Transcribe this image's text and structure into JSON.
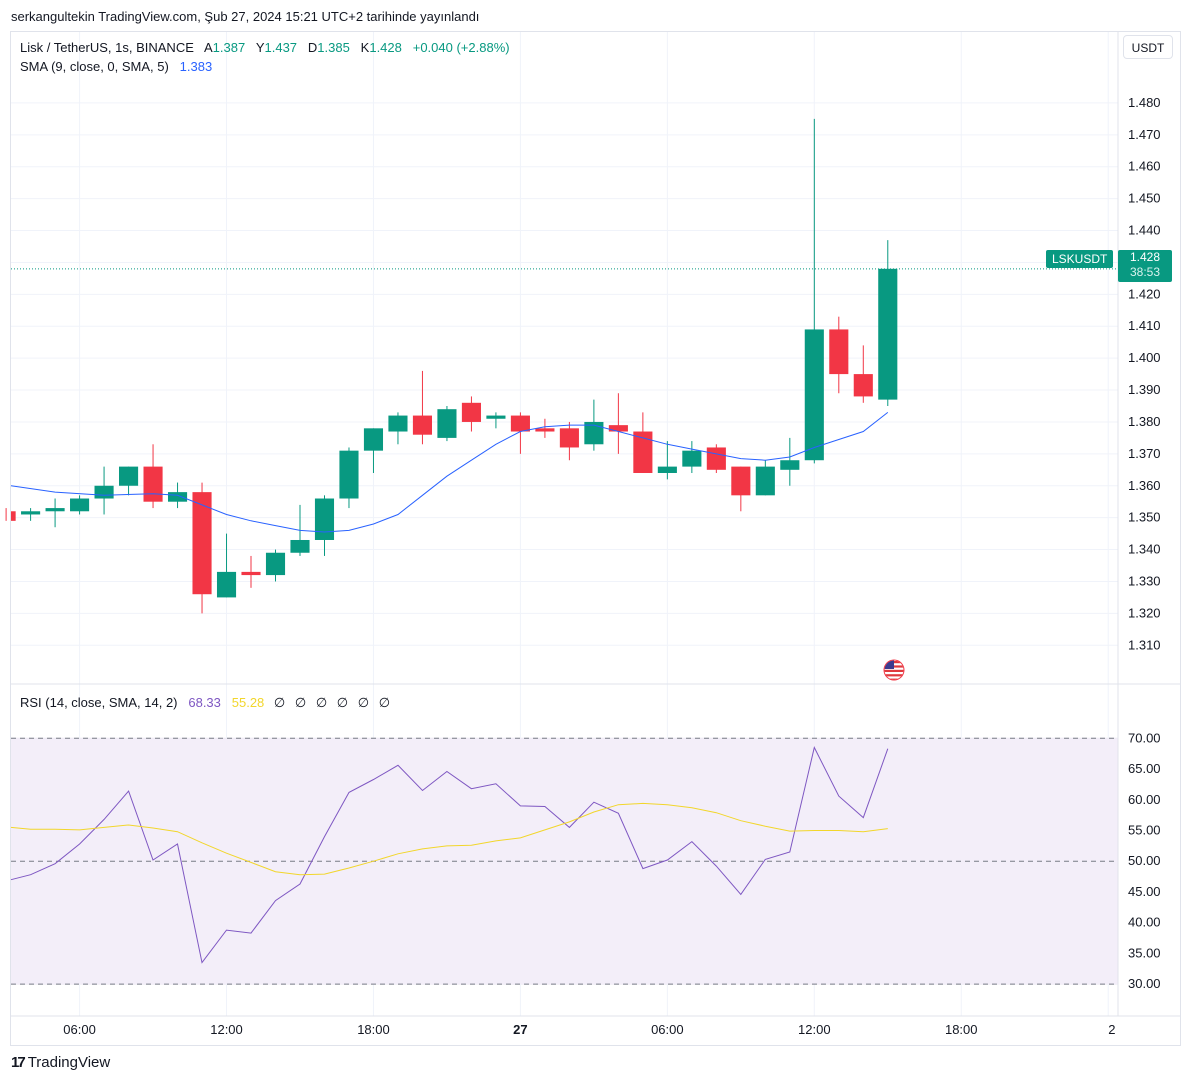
{
  "header": {
    "publish_line": "serkangultekin TradingView.com, Şub 27, 2024 15:21 UTC+2 tarihinde yayınlandı"
  },
  "legend": {
    "symbol": "Lisk / TetherUS, 1s, BINANCE",
    "o_label": "A",
    "o_value": "1.387",
    "h_label": "Y",
    "h_value": "1.437",
    "l_label": "D",
    "l_value": "1.385",
    "c_label": "K",
    "c_value": "1.428",
    "change": "+0.040 (+2.88%)",
    "sma_label": "SMA (9, close, 0, SMA, 5)",
    "sma_value": "1.383",
    "rsi_label": "RSI (14, close, SMA, 14, 2)",
    "rsi_value": "68.33",
    "rsi_ma_value": "55.28",
    "null_values": [
      "∅",
      "∅",
      "∅",
      "∅",
      "∅",
      "∅"
    ]
  },
  "currency_button": "USDT",
  "last_price": {
    "symbol": "LSKUSDT",
    "price": "1.428",
    "countdown": "38:53"
  },
  "branding": {
    "logo_mark": "17",
    "name": "TradingView"
  },
  "colors": {
    "up": "#089981",
    "down": "#f23645",
    "sma": "#2962ff",
    "rsi": "#7e57c2",
    "rsi_ma": "#f2d62b",
    "rsi_band": "#f3eef9"
  },
  "chart_data": [
    {
      "type": "candlestick",
      "title": "Lisk / TetherUS, 1s, BINANCE",
      "y_ticks": [
        "1.310",
        "1.320",
        "1.330",
        "1.340",
        "1.350",
        "1.360",
        "1.370",
        "1.380",
        "1.390",
        "1.400",
        "1.410",
        "1.420",
        "1.430",
        "1.440",
        "1.450",
        "1.460",
        "1.470",
        "1.480"
      ],
      "ylim": [
        1.3035,
        1.4875
      ],
      "x_ticks": [
        "06:00",
        "12:00",
        "18:00",
        "27",
        "06:00",
        "12:00",
        "18:00",
        "2"
      ],
      "x_tick_hours": [
        6,
        12,
        18,
        24,
        30,
        36,
        42,
        48
      ],
      "xlim": [
        3.2,
        48.4
      ],
      "candles": [
        {
          "t": 3,
          "o": 1.352,
          "h": 1.353,
          "l": 1.349,
          "c": 1.349
        },
        {
          "t": 4,
          "o": 1.351,
          "h": 1.353,
          "l": 1.349,
          "c": 1.352
        },
        {
          "t": 5,
          "o": 1.352,
          "h": 1.356,
          "l": 1.347,
          "c": 1.353
        },
        {
          "t": 6,
          "o": 1.352,
          "h": 1.357,
          "l": 1.351,
          "c": 1.356
        },
        {
          "t": 7,
          "o": 1.356,
          "h": 1.366,
          "l": 1.351,
          "c": 1.36
        },
        {
          "t": 8,
          "o": 1.36,
          "h": 1.366,
          "l": 1.357,
          "c": 1.366
        },
        {
          "t": 9,
          "o": 1.366,
          "h": 1.373,
          "l": 1.353,
          "c": 1.355
        },
        {
          "t": 10,
          "o": 1.355,
          "h": 1.361,
          "l": 1.353,
          "c": 1.358
        },
        {
          "t": 11,
          "o": 1.358,
          "h": 1.361,
          "l": 1.32,
          "c": 1.326
        },
        {
          "t": 12,
          "o": 1.325,
          "h": 1.345,
          "l": 1.325,
          "c": 1.333
        },
        {
          "t": 13,
          "o": 1.333,
          "h": 1.338,
          "l": 1.328,
          "c": 1.332
        },
        {
          "t": 14,
          "o": 1.332,
          "h": 1.34,
          "l": 1.33,
          "c": 1.339
        },
        {
          "t": 15,
          "o": 1.339,
          "h": 1.354,
          "l": 1.338,
          "c": 1.343
        },
        {
          "t": 16,
          "o": 1.343,
          "h": 1.357,
          "l": 1.338,
          "c": 1.356
        },
        {
          "t": 17,
          "o": 1.356,
          "h": 1.372,
          "l": 1.353,
          "c": 1.371
        },
        {
          "t": 18,
          "o": 1.371,
          "h": 1.378,
          "l": 1.364,
          "c": 1.378
        },
        {
          "t": 19,
          "o": 1.377,
          "h": 1.383,
          "l": 1.373,
          "c": 1.382
        },
        {
          "t": 20,
          "o": 1.382,
          "h": 1.396,
          "l": 1.373,
          "c": 1.376
        },
        {
          "t": 21,
          "o": 1.375,
          "h": 1.385,
          "l": 1.374,
          "c": 1.384
        },
        {
          "t": 22,
          "o": 1.386,
          "h": 1.388,
          "l": 1.377,
          "c": 1.38
        },
        {
          "t": 23,
          "o": 1.381,
          "h": 1.383,
          "l": 1.378,
          "c": 1.382
        },
        {
          "t": 24,
          "o": 1.382,
          "h": 1.383,
          "l": 1.37,
          "c": 1.377
        },
        {
          "t": 25,
          "o": 1.378,
          "h": 1.381,
          "l": 1.375,
          "c": 1.377
        },
        {
          "t": 26,
          "o": 1.378,
          "h": 1.38,
          "l": 1.368,
          "c": 1.372
        },
        {
          "t": 27,
          "o": 1.373,
          "h": 1.387,
          "l": 1.371,
          "c": 1.38
        },
        {
          "t": 28,
          "o": 1.379,
          "h": 1.389,
          "l": 1.37,
          "c": 1.377
        },
        {
          "t": 29,
          "o": 1.377,
          "h": 1.383,
          "l": 1.364,
          "c": 1.364
        },
        {
          "t": 30,
          "o": 1.364,
          "h": 1.374,
          "l": 1.362,
          "c": 1.366
        },
        {
          "t": 31,
          "o": 1.366,
          "h": 1.374,
          "l": 1.364,
          "c": 1.371
        },
        {
          "t": 32,
          "o": 1.372,
          "h": 1.373,
          "l": 1.364,
          "c": 1.365
        },
        {
          "t": 33,
          "o": 1.366,
          "h": 1.366,
          "l": 1.352,
          "c": 1.357
        },
        {
          "t": 34,
          "o": 1.357,
          "h": 1.368,
          "l": 1.357,
          "c": 1.366
        },
        {
          "t": 35,
          "o": 1.365,
          "h": 1.375,
          "l": 1.36,
          "c": 1.368
        },
        {
          "t": 36,
          "o": 1.368,
          "h": 1.475,
          "l": 1.367,
          "c": 1.409
        },
        {
          "t": 37,
          "o": 1.409,
          "h": 1.413,
          "l": 1.389,
          "c": 1.395
        },
        {
          "t": 38,
          "o": 1.395,
          "h": 1.404,
          "l": 1.386,
          "c": 1.388
        },
        {
          "t": 39,
          "o": 1.387,
          "h": 1.437,
          "l": 1.385,
          "c": 1.428
        }
      ],
      "sma": {
        "name": "SMA (9, close, 0, SMA, 5)",
        "points": [
          [
            3,
            1.36
          ],
          [
            5,
            1.358
          ],
          [
            7,
            1.357
          ],
          [
            9,
            1.3575
          ],
          [
            10,
            1.357
          ],
          [
            11,
            1.354
          ],
          [
            12,
            1.351
          ],
          [
            13,
            1.349
          ],
          [
            14,
            1.3475
          ],
          [
            15,
            1.346
          ],
          [
            16,
            1.3455
          ],
          [
            17,
            1.346
          ],
          [
            18,
            1.348
          ],
          [
            19,
            1.351
          ],
          [
            20,
            1.357
          ],
          [
            21,
            1.363
          ],
          [
            22,
            1.368
          ],
          [
            23,
            1.373
          ],
          [
            24,
            1.377
          ],
          [
            25,
            1.3785
          ],
          [
            26,
            1.379
          ],
          [
            27,
            1.379
          ],
          [
            28,
            1.377
          ],
          [
            29,
            1.375
          ],
          [
            30,
            1.373
          ],
          [
            31,
            1.3715
          ],
          [
            32,
            1.37
          ],
          [
            33,
            1.3685
          ],
          [
            34,
            1.368
          ],
          [
            35,
            1.369
          ],
          [
            36,
            1.372
          ],
          [
            37,
            1.3745
          ],
          [
            38,
            1.377
          ],
          [
            39,
            1.383
          ]
        ]
      }
    },
    {
      "type": "line",
      "title": "RSI (14, close, SMA, 14, 2)",
      "y_ticks": [
        "30.00",
        "35.00",
        "40.00",
        "45.00",
        "50.00",
        "55.00",
        "60.00",
        "65.00",
        "70.00"
      ],
      "ylim": [
        29.7,
        73.3
      ],
      "bands": [
        30,
        50,
        70
      ],
      "series": [
        {
          "name": "RSI",
          "color": "#7e57c2",
          "points": [
            [
              3,
              47.0
            ],
            [
              4,
              47.8
            ],
            [
              5,
              49.6
            ],
            [
              6,
              52.8
            ],
            [
              7,
              56.8
            ],
            [
              8,
              61.4
            ],
            [
              9,
              50.2
            ],
            [
              10,
              52.8
            ],
            [
              11,
              33.5
            ],
            [
              12,
              38.8
            ],
            [
              13,
              38.3
            ],
            [
              14,
              43.6
            ],
            [
              15,
              46.3
            ],
            [
              16,
              54.0
            ],
            [
              17,
              61.2
            ],
            [
              18,
              63.3
            ],
            [
              19,
              65.6
            ],
            [
              20,
              61.5
            ],
            [
              21,
              64.6
            ],
            [
              22,
              61.8
            ],
            [
              23,
              62.6
            ],
            [
              24,
              59.0
            ],
            [
              25,
              58.9
            ],
            [
              26,
              55.5
            ],
            [
              27,
              59.6
            ],
            [
              28,
              57.8
            ],
            [
              29,
              48.8
            ],
            [
              30,
              50.2
            ],
            [
              31,
              53.2
            ],
            [
              32,
              49.2
            ],
            [
              33,
              44.6
            ],
            [
              34,
              50.3
            ],
            [
              35,
              51.5
            ],
            [
              36,
              68.5
            ],
            [
              37,
              60.6
            ],
            [
              38,
              57.1
            ],
            [
              39,
              68.3
            ]
          ]
        },
        {
          "name": "RSI MA",
          "color": "#f2d62b",
          "points": [
            [
              3,
              55.5
            ],
            [
              4,
              55.2
            ],
            [
              5,
              55.2
            ],
            [
              6,
              55.1
            ],
            [
              7,
              55.5
            ],
            [
              8,
              55.9
            ],
            [
              9,
              55.4
            ],
            [
              10,
              54.8
            ],
            [
              11,
              53.0
            ],
            [
              12,
              51.3
            ],
            [
              13,
              49.8
            ],
            [
              14,
              48.3
            ],
            [
              15,
              47.8
            ],
            [
              16,
              47.9
            ],
            [
              17,
              48.9
            ],
            [
              18,
              50.0
            ],
            [
              19,
              51.2
            ],
            [
              20,
              52.0
            ],
            [
              21,
              52.5
            ],
            [
              22,
              52.6
            ],
            [
              23,
              53.3
            ],
            [
              24,
              53.8
            ],
            [
              25,
              55.1
            ],
            [
              26,
              56.4
            ],
            [
              27,
              58.0
            ],
            [
              28,
              59.2
            ],
            [
              29,
              59.4
            ],
            [
              30,
              59.2
            ],
            [
              31,
              58.7
            ],
            [
              32,
              57.9
            ],
            [
              33,
              56.6
            ],
            [
              34,
              55.7
            ],
            [
              35,
              54.9
            ],
            [
              36,
              55.0
            ],
            [
              37,
              55.0
            ],
            [
              38,
              54.8
            ],
            [
              39,
              55.3
            ]
          ]
        }
      ]
    }
  ]
}
